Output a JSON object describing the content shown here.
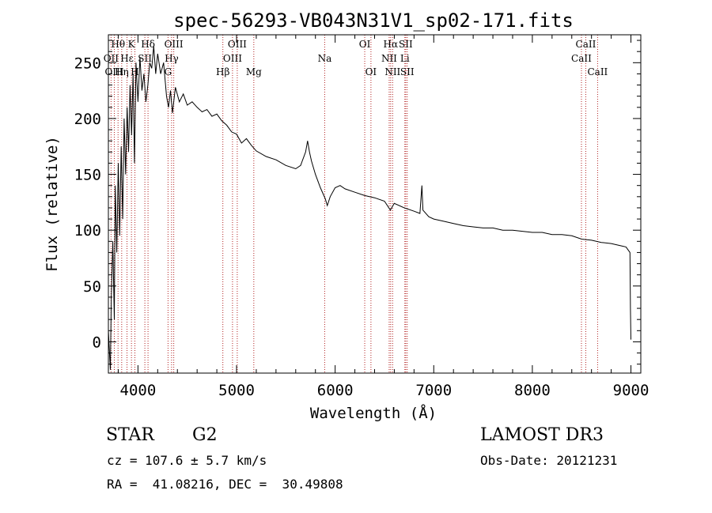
{
  "chart_data": {
    "type": "line",
    "title": "spec-56293-VB043N31V1_sp02-171.fits",
    "xlabel": "Wavelength (Å)",
    "ylabel": "Flux (relative)",
    "xlim": [
      3700,
      9100
    ],
    "ylim": [
      -28,
      275
    ],
    "xticks": [
      4000,
      5000,
      6000,
      7000,
      8000,
      9000
    ],
    "yticks": [
      0,
      50,
      100,
      150,
      200,
      250
    ],
    "anchors": [
      [
        3700,
        10
      ],
      [
        3720,
        -25
      ],
      [
        3730,
        40
      ],
      [
        3745,
        90
      ],
      [
        3760,
        20
      ],
      [
        3770,
        140
      ],
      [
        3785,
        80
      ],
      [
        3800,
        160
      ],
      [
        3815,
        95
      ],
      [
        3830,
        175
      ],
      [
        3845,
        110
      ],
      [
        3860,
        200
      ],
      [
        3875,
        150
      ],
      [
        3890,
        210
      ],
      [
        3905,
        170
      ],
      [
        3920,
        230
      ],
      [
        3935,
        185
      ],
      [
        3950,
        240
      ],
      [
        3965,
        160
      ],
      [
        3980,
        250
      ],
      [
        4000,
        215
      ],
      [
        4020,
        255
      ],
      [
        4040,
        225
      ],
      [
        4060,
        240
      ],
      [
        4080,
        215
      ],
      [
        4100,
        230
      ],
      [
        4120,
        250
      ],
      [
        4140,
        245
      ],
      [
        4160,
        265
      ],
      [
        4180,
        240
      ],
      [
        4200,
        258
      ],
      [
        4230,
        240
      ],
      [
        4260,
        250
      ],
      [
        4290,
        220
      ],
      [
        4310,
        210
      ],
      [
        4330,
        225
      ],
      [
        4350,
        205
      ],
      [
        4380,
        228
      ],
      [
        4420,
        215
      ],
      [
        4460,
        222
      ],
      [
        4500,
        212
      ],
      [
        4550,
        215
      ],
      [
        4600,
        210
      ],
      [
        4650,
        206
      ],
      [
        4700,
        208
      ],
      [
        4750,
        202
      ],
      [
        4800,
        204
      ],
      [
        4850,
        198
      ],
      [
        4900,
        194
      ],
      [
        4950,
        188
      ],
      [
        5000,
        186
      ],
      [
        5050,
        178
      ],
      [
        5100,
        182
      ],
      [
        5150,
        176
      ],
      [
        5200,
        171
      ],
      [
        5300,
        166
      ],
      [
        5400,
        163
      ],
      [
        5500,
        158
      ],
      [
        5600,
        155
      ],
      [
        5650,
        158
      ],
      [
        5700,
        170
      ],
      [
        5720,
        180
      ],
      [
        5740,
        170
      ],
      [
        5760,
        162
      ],
      [
        5800,
        150
      ],
      [
        5850,
        138
      ],
      [
        5900,
        128
      ],
      [
        5920,
        122
      ],
      [
        5950,
        130
      ],
      [
        6000,
        138
      ],
      [
        6050,
        140
      ],
      [
        6100,
        137
      ],
      [
        6200,
        134
      ],
      [
        6300,
        131
      ],
      [
        6400,
        129
      ],
      [
        6500,
        126
      ],
      [
        6560,
        118
      ],
      [
        6600,
        124
      ],
      [
        6700,
        120
      ],
      [
        6800,
        117
      ],
      [
        6860,
        115
      ],
      [
        6880,
        140
      ],
      [
        6890,
        118
      ],
      [
        6950,
        112
      ],
      [
        7000,
        110
      ],
      [
        7100,
        108
      ],
      [
        7200,
        106
      ],
      [
        7300,
        104
      ],
      [
        7400,
        103
      ],
      [
        7500,
        102
      ],
      [
        7600,
        102
      ],
      [
        7700,
        100
      ],
      [
        7800,
        100
      ],
      [
        7900,
        99
      ],
      [
        8000,
        98
      ],
      [
        8100,
        98
      ],
      [
        8200,
        96
      ],
      [
        8300,
        96
      ],
      [
        8400,
        95
      ],
      [
        8500,
        92
      ],
      [
        8600,
        91
      ],
      [
        8700,
        89
      ],
      [
        8800,
        88
      ],
      [
        8900,
        86
      ],
      [
        8950,
        85
      ],
      [
        8990,
        80
      ],
      [
        8995,
        30
      ],
      [
        9000,
        2
      ]
    ],
    "lines": [
      {
        "name": "Hθ",
        "x": 3798,
        "row": 1
      },
      {
        "name": "OII",
        "x": 3727,
        "row": 2
      },
      {
        "name": "OIII",
        "x": 3760,
        "row": 3
      },
      {
        "name": "Hη",
        "x": 3835,
        "row": 3
      },
      {
        "name": "Hε",
        "x": 3889,
        "row": 2
      },
      {
        "name": "K",
        "x": 3934,
        "row": 1
      },
      {
        "name": "H",
        "x": 3969,
        "row": 3
      },
      {
        "name": "SII",
        "x": 4070,
        "row": 2
      },
      {
        "name": "Hδ",
        "x": 4102,
        "row": 1
      },
      {
        "name": "G",
        "x": 4305,
        "row": 3
      },
      {
        "name": "Hγ",
        "x": 4341,
        "row": 2
      },
      {
        "name": "OIII",
        "x": 4363,
        "row": 1
      },
      {
        "name": "Hβ",
        "x": 4861,
        "row": 3
      },
      {
        "name": "OIII",
        "x": 4959,
        "row": 2
      },
      {
        "name": "OIII",
        "x": 5007,
        "row": 1
      },
      {
        "name": "Mg",
        "x": 5175,
        "row": 3
      },
      {
        "name": "Na",
        "x": 5894,
        "row": 2
      },
      {
        "name": "OI",
        "x": 6300,
        "row": 1
      },
      {
        "name": "OI",
        "x": 6363,
        "row": 3
      },
      {
        "name": "NII",
        "x": 6548,
        "row": 2
      },
      {
        "name": "Hα",
        "x": 6563,
        "row": 1
      },
      {
        "name": "NII",
        "x": 6583,
        "row": 3
      },
      {
        "name": "Li",
        "x": 6707,
        "row": 2
      },
      {
        "name": "SII",
        "x": 6716,
        "row": 1
      },
      {
        "name": "SII",
        "x": 6731,
        "row": 3
      },
      {
        "name": "CaII",
        "x": 8498,
        "row": 2
      },
      {
        "name": "CaII",
        "x": 8542,
        "row": 1
      },
      {
        "name": "CaII",
        "x": 8662,
        "row": 3
      }
    ]
  },
  "info": {
    "class_label": "STAR",
    "subclass": "G2",
    "cz": "cz = 107.6 ± 5.7 km/s",
    "coords": "RA =  41.08216, DEC =  30.49808",
    "survey": "LAMOST DR3",
    "obs_date": "Obs-Date: 20121231"
  },
  "colors": {
    "line": "#000000",
    "marker": "#b22222"
  }
}
